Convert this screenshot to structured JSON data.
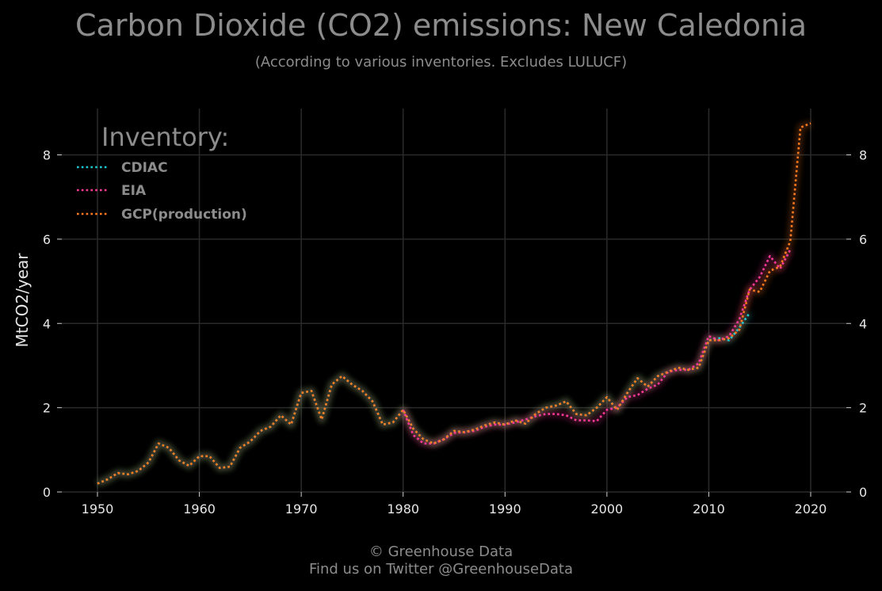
{
  "header": {
    "title": "Carbon Dioxide (CO2) emissions: New Caledonia",
    "subtitle": "(According to various inventories. Excludes LULUCF)"
  },
  "footer": {
    "line1": "© Greenhouse Data",
    "line2": "Find us on Twitter @GreenhouseData"
  },
  "chart_data": {
    "type": "line",
    "ylabel": "MtCO2/year",
    "xlabel": "",
    "xlim": [
      1946.5,
      2023.5
    ],
    "ylim": [
      0,
      9.1
    ],
    "x_ticks": [
      1950,
      1960,
      1970,
      1980,
      1990,
      2000,
      2010,
      2020
    ],
    "y_ticks": [
      0,
      2,
      4,
      6,
      8
    ],
    "grid": true,
    "legend_title": "Inventory:",
    "legend_position": "top-left",
    "series": [
      {
        "name": "CDIAC",
        "color": "#1ecbd2",
        "x": [
          1950,
          1951,
          1952,
          1953,
          1954,
          1955,
          1956,
          1957,
          1958,
          1959,
          1960,
          1961,
          1962,
          1963,
          1964,
          1965,
          1966,
          1967,
          1968,
          1969,
          1970,
          1971,
          1972,
          1973,
          1974,
          1975,
          1976,
          1977,
          1978,
          1979,
          1980,
          1981,
          1982,
          1983,
          1984,
          1985,
          1986,
          1987,
          1988,
          1989,
          1990,
          1991,
          1992,
          1993,
          1994,
          1995,
          1996,
          1997,
          1998,
          1999,
          2000,
          2001,
          2002,
          2003,
          2004,
          2005,
          2006,
          2007,
          2008,
          2009,
          2010,
          2011,
          2012,
          2013,
          2014
        ],
        "values": [
          0.2,
          0.3,
          0.45,
          0.42,
          0.5,
          0.7,
          1.15,
          1.05,
          0.75,
          0.62,
          0.85,
          0.85,
          0.57,
          0.6,
          1.05,
          1.2,
          1.45,
          1.55,
          1.82,
          1.6,
          2.35,
          2.4,
          1.72,
          2.55,
          2.75,
          2.55,
          2.4,
          2.15,
          1.6,
          1.65,
          1.95,
          1.5,
          1.25,
          1.15,
          1.25,
          1.45,
          1.42,
          1.48,
          1.58,
          1.65,
          1.6,
          1.7,
          1.62,
          1.85,
          2.0,
          2.05,
          2.15,
          1.85,
          1.82,
          2.0,
          2.25,
          1.95,
          2.35,
          2.7,
          2.5,
          2.75,
          2.85,
          2.95,
          2.9,
          2.95,
          3.6,
          3.65,
          3.6,
          3.9,
          4.25
        ]
      },
      {
        "name": "EIA",
        "color": "#ff3a9a",
        "x": [
          1980,
          1981,
          1982,
          1983,
          1984,
          1985,
          1986,
          1987,
          1988,
          1989,
          1990,
          1991,
          1992,
          1993,
          1994,
          1995,
          1996,
          1997,
          1998,
          1999,
          2000,
          2001,
          2002,
          2003,
          2004,
          2005,
          2006,
          2007,
          2008,
          2009,
          2010,
          2011,
          2012,
          2013,
          2014,
          2015,
          2016,
          2017,
          2018
        ],
        "values": [
          1.95,
          1.35,
          1.15,
          1.15,
          1.25,
          1.4,
          1.42,
          1.45,
          1.55,
          1.6,
          1.6,
          1.65,
          1.72,
          1.8,
          1.85,
          1.85,
          1.82,
          1.7,
          1.7,
          1.68,
          1.95,
          2.0,
          2.25,
          2.3,
          2.45,
          2.55,
          2.85,
          2.9,
          2.9,
          3.05,
          3.7,
          3.6,
          3.7,
          4.1,
          4.8,
          5.1,
          5.6,
          5.3,
          5.75
        ]
      },
      {
        "name": "GCP(production)",
        "color": "#ff7a1c",
        "x": [
          1950,
          1951,
          1952,
          1953,
          1954,
          1955,
          1956,
          1957,
          1958,
          1959,
          1960,
          1961,
          1962,
          1963,
          1964,
          1965,
          1966,
          1967,
          1968,
          1969,
          1970,
          1971,
          1972,
          1973,
          1974,
          1975,
          1976,
          1977,
          1978,
          1979,
          1980,
          1981,
          1982,
          1983,
          1984,
          1985,
          1986,
          1987,
          1988,
          1989,
          1990,
          1991,
          1992,
          1993,
          1994,
          1995,
          1996,
          1997,
          1998,
          1999,
          2000,
          2001,
          2002,
          2003,
          2004,
          2005,
          2006,
          2007,
          2008,
          2009,
          2010,
          2011,
          2012,
          2013,
          2014,
          2015,
          2016,
          2017,
          2018,
          2019,
          2020
        ],
        "values": [
          0.2,
          0.3,
          0.45,
          0.42,
          0.5,
          0.7,
          1.15,
          1.05,
          0.75,
          0.62,
          0.85,
          0.85,
          0.57,
          0.6,
          1.05,
          1.2,
          1.45,
          1.55,
          1.82,
          1.6,
          2.35,
          2.4,
          1.72,
          2.55,
          2.75,
          2.55,
          2.4,
          2.15,
          1.6,
          1.65,
          1.95,
          1.5,
          1.25,
          1.15,
          1.25,
          1.45,
          1.42,
          1.48,
          1.58,
          1.65,
          1.6,
          1.7,
          1.62,
          1.85,
          2.0,
          2.05,
          2.15,
          1.85,
          1.82,
          2.0,
          2.25,
          1.95,
          2.35,
          2.7,
          2.5,
          2.75,
          2.85,
          2.95,
          2.9,
          2.95,
          3.6,
          3.6,
          3.65,
          3.85,
          4.8,
          4.75,
          5.25,
          5.35,
          5.95,
          8.65,
          8.75
        ]
      }
    ]
  }
}
